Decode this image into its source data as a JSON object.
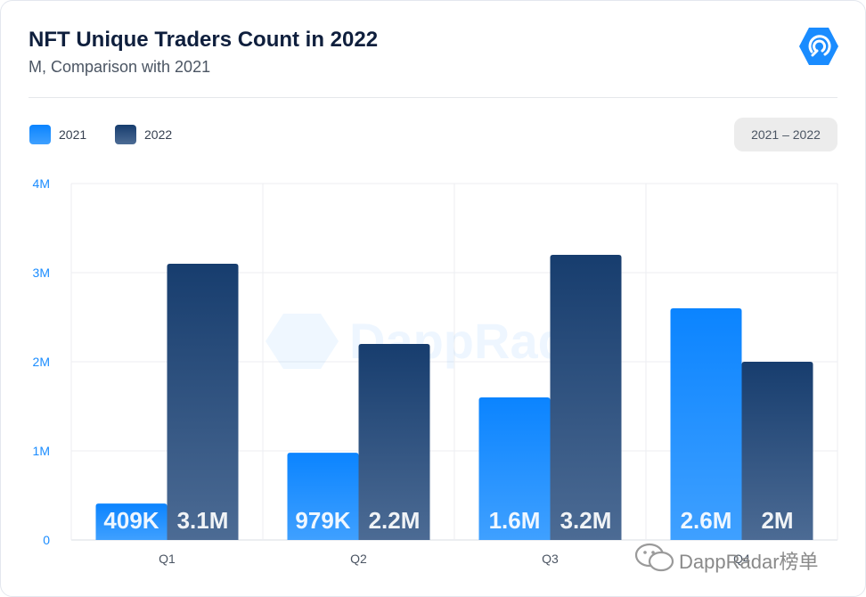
{
  "header": {
    "title": "NFT Unique Traders Count in 2022",
    "subtitle": "M, Comparison with 2021"
  },
  "legend": [
    {
      "label": "2021",
      "color": "#1a8cff"
    },
    {
      "label": "2022",
      "color": "#1c3f70"
    }
  ],
  "range_button": {
    "label": "2021 – 2022"
  },
  "watermark": {
    "text": "DappRadar"
  },
  "social_caption": {
    "text": "DappRadar榜单"
  },
  "colors": {
    "accent": "#1a8cff",
    "bar_2021_top": "#0b84ff",
    "bar_2021_bottom": "#3fa0ff",
    "bar_2022_top": "#173d6e",
    "bar_2022_bottom": "#4c6b94",
    "axis_text": "#1a8cff"
  },
  "chart_data": {
    "type": "bar",
    "categories": [
      "Q1",
      "Q2",
      "Q3",
      "Q4"
    ],
    "series": [
      {
        "name": "2021",
        "values": [
          0.409,
          0.979,
          1.6,
          2.6
        ],
        "labels": [
          "409K",
          "979K",
          "1.6M",
          "2.6M"
        ]
      },
      {
        "name": "2022",
        "values": [
          3.1,
          2.2,
          3.2,
          2.0
        ],
        "labels": [
          "3.1M",
          "2.2M",
          "3.2M",
          "2M"
        ]
      }
    ],
    "title": "NFT Unique Traders Count in 2022",
    "subtitle": "M, Comparison with 2021",
    "ylim": [
      0,
      4
    ],
    "yticks": [
      0,
      1,
      2,
      3,
      4
    ],
    "ytick_labels": [
      "0",
      "1M",
      "2M",
      "3M",
      "4M"
    ],
    "grid": true,
    "legend_position": "top-left"
  }
}
